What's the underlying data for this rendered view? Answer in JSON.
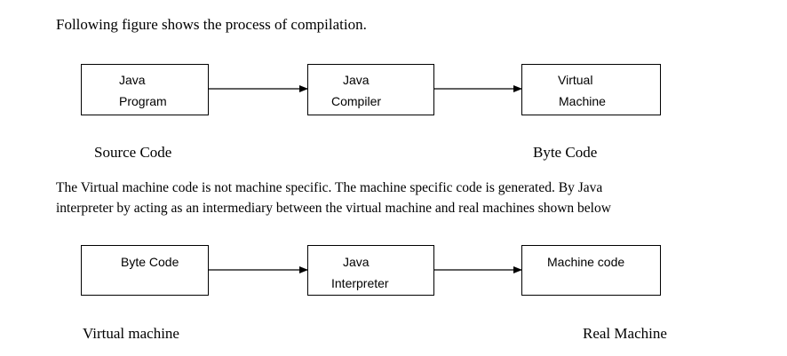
{
  "intro": "Following figure shows the process of compilation.",
  "diagram1": {
    "boxes": [
      {
        "line1": "Java",
        "line2": "Program"
      },
      {
        "line1": "Java",
        "line2": "Compiler"
      },
      {
        "line1": "Virtual",
        "line2": "Machine"
      }
    ],
    "caption_left": "Source Code",
    "caption_right": "Byte Code"
  },
  "paragraph": {
    "line1": "The Virtual machine code is not machine specific. The machine specific code is generated. By Java",
    "line2": "interpreter by acting as an intermediary between the virtual machine and real machines shown below"
  },
  "diagram2": {
    "boxes": [
      {
        "line1": "Byte Code"
      },
      {
        "line1": "Java",
        "line2": "Interpreter"
      },
      {
        "line1": "Machine code"
      }
    ],
    "caption_left": "Virtual machine",
    "caption_right": "Real Machine"
  }
}
